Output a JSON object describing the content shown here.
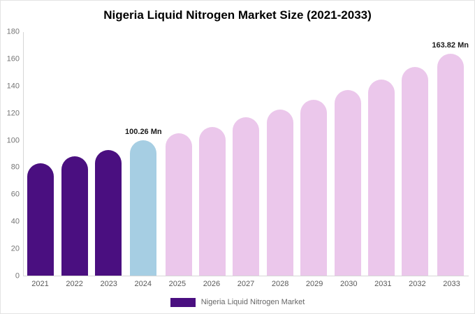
{
  "title": "Nigeria Liquid Nitrogen Market Size (2021-2033)",
  "legend": {
    "label": "Nigeria Liquid Nitrogen Market"
  },
  "colors": {
    "historical": "#4a0f80",
    "current": "#a6cee3",
    "forecast": "#ebc7eb",
    "axis_line": "#d6d6d6",
    "tick_text": "#757575"
  },
  "chart_data": {
    "type": "bar",
    "title": "Nigeria Liquid Nitrogen Market Size (2021-2033)",
    "categories": [
      "2021",
      "2022",
      "2023",
      "2024",
      "2025",
      "2026",
      "2027",
      "2028",
      "2029",
      "2030",
      "2031",
      "2032",
      "2033"
    ],
    "values": [
      83,
      88,
      93,
      100.26,
      105,
      110,
      117,
      123,
      130,
      137,
      145,
      154,
      163.82
    ],
    "bar_roles": [
      "historical",
      "historical",
      "historical",
      "current",
      "forecast",
      "forecast",
      "forecast",
      "forecast",
      "forecast",
      "forecast",
      "forecast",
      "forecast",
      "forecast"
    ],
    "annotations": [
      {
        "index": 3,
        "text": "100.26 Mn"
      },
      {
        "index": 12,
        "text": "163.82 Mn"
      }
    ],
    "xlabel": "",
    "ylabel": "",
    "ylim": [
      0,
      180
    ],
    "yticks": [
      0,
      20,
      40,
      60,
      80,
      100,
      120,
      140,
      160,
      180
    ],
    "grid": false,
    "legend_entries": [
      "Nigeria Liquid Nitrogen Market"
    ],
    "legend_position": "bottom"
  }
}
